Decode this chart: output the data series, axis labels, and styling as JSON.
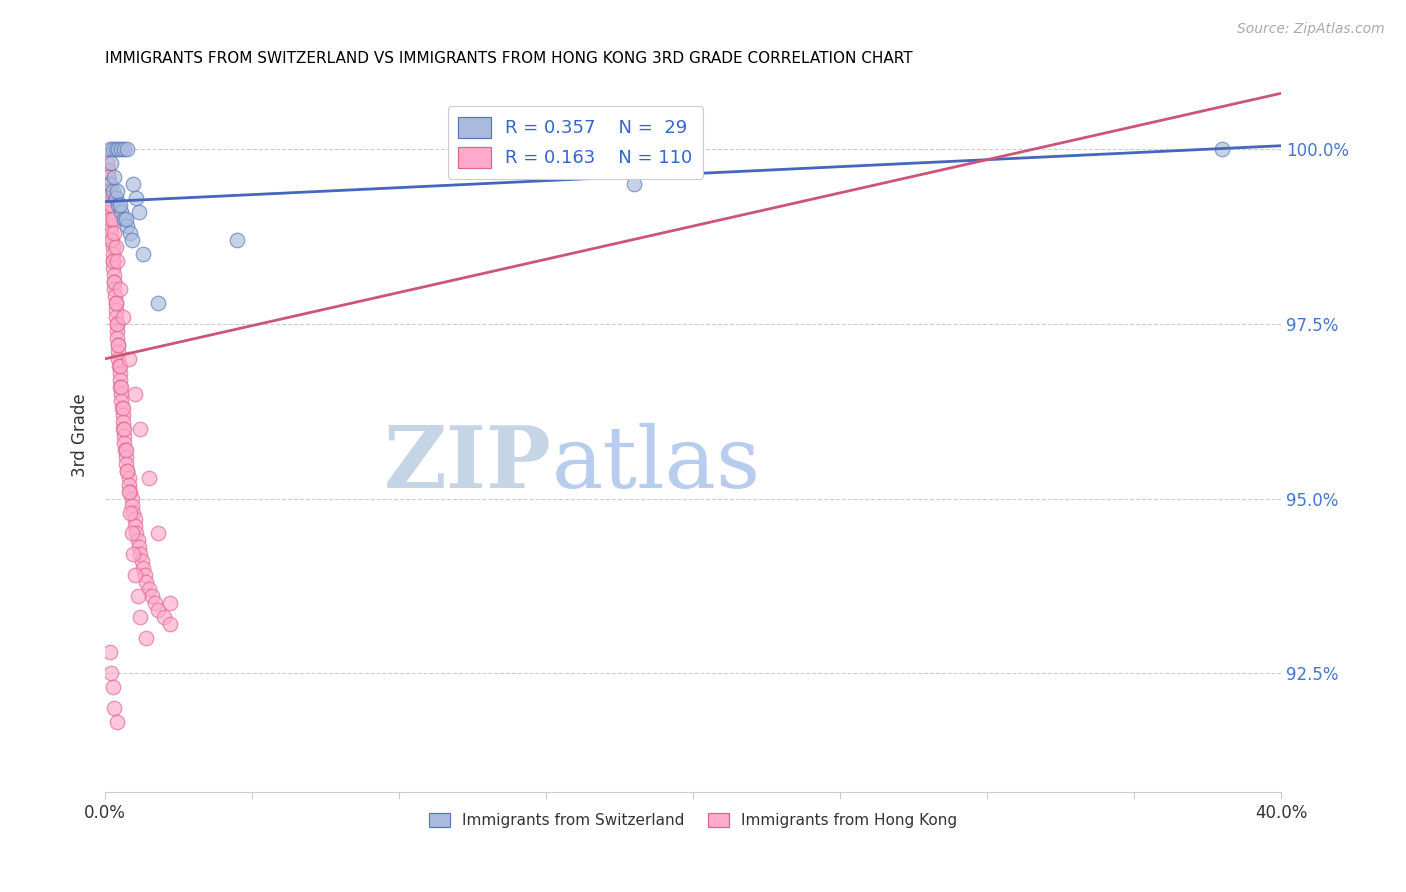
{
  "title": "IMMIGRANTS FROM SWITZERLAND VS IMMIGRANTS FROM HONG KONG 3RD GRADE CORRELATION CHART",
  "source": "Source: ZipAtlas.com",
  "ylabel": "3rd Grade",
  "ytick_values": [
    92.5,
    95.0,
    97.5,
    100.0
  ],
  "xlim": [
    0.0,
    40.0
  ],
  "ylim": [
    90.8,
    101.0
  ],
  "legend_blue": "R = 0.357    N =  29",
  "legend_pink": "R = 0.163    N = 110",
  "blue_fill": "#AABBDD",
  "blue_edge": "#5577BB",
  "blue_line": "#4466BB",
  "pink_fill": "#FFAACC",
  "pink_edge": "#DD6688",
  "pink_line": "#CC5577",
  "watermark_zip": "#C8D8E8",
  "watermark_atlas": "#B8CCE8",
  "switzerland_x": [
    0.15,
    0.25,
    0.35,
    0.45,
    0.55,
    0.65,
    0.75,
    0.15,
    0.25,
    0.35,
    0.45,
    0.55,
    0.65,
    0.75,
    0.85,
    0.95,
    1.05,
    1.15,
    0.2,
    0.3,
    0.4,
    0.5,
    0.7,
    0.9,
    1.3,
    1.8,
    4.5,
    18.0,
    38.0
  ],
  "switzerland_y": [
    100.0,
    100.0,
    100.0,
    100.0,
    100.0,
    100.0,
    100.0,
    99.5,
    99.4,
    99.3,
    99.2,
    99.1,
    99.0,
    98.9,
    98.8,
    99.5,
    99.3,
    99.1,
    99.8,
    99.6,
    99.4,
    99.2,
    99.0,
    98.7,
    98.5,
    97.8,
    98.7,
    99.5,
    100.0
  ],
  "hongkong_x": [
    0.05,
    0.08,
    0.1,
    0.1,
    0.12,
    0.15,
    0.15,
    0.15,
    0.18,
    0.2,
    0.2,
    0.2,
    0.22,
    0.25,
    0.25,
    0.25,
    0.28,
    0.3,
    0.3,
    0.3,
    0.32,
    0.35,
    0.35,
    0.38,
    0.4,
    0.4,
    0.4,
    0.42,
    0.45,
    0.45,
    0.48,
    0.5,
    0.5,
    0.52,
    0.55,
    0.55,
    0.58,
    0.6,
    0.6,
    0.62,
    0.65,
    0.65,
    0.68,
    0.7,
    0.7,
    0.75,
    0.8,
    0.8,
    0.85,
    0.9,
    0.9,
    0.95,
    1.0,
    1.0,
    1.05,
    1.1,
    1.15,
    1.2,
    1.25,
    1.3,
    1.35,
    1.4,
    1.5,
    1.6,
    1.7,
    1.8,
    2.0,
    2.2,
    0.1,
    0.15,
    0.2,
    0.25,
    0.3,
    0.35,
    0.4,
    0.45,
    0.5,
    0.55,
    0.6,
    0.65,
    0.7,
    0.75,
    0.8,
    0.85,
    0.9,
    0.95,
    1.0,
    1.1,
    1.2,
    1.4,
    0.1,
    0.15,
    0.2,
    0.25,
    0.3,
    0.35,
    0.4,
    0.5,
    0.6,
    0.8,
    1.0,
    1.2,
    1.5,
    1.8,
    2.2,
    0.15,
    0.2,
    0.25,
    0.3,
    0.4
  ],
  "hongkong_y": [
    99.8,
    99.7,
    99.6,
    99.5,
    99.5,
    99.4,
    99.3,
    99.2,
    99.1,
    99.0,
    98.9,
    98.8,
    98.7,
    98.6,
    98.5,
    98.4,
    98.3,
    98.2,
    98.1,
    98.0,
    97.9,
    97.8,
    97.7,
    97.6,
    97.5,
    97.4,
    97.3,
    97.2,
    97.1,
    97.0,
    96.9,
    96.8,
    96.7,
    96.6,
    96.5,
    96.4,
    96.3,
    96.2,
    96.1,
    96.0,
    95.9,
    95.8,
    95.7,
    95.6,
    95.5,
    95.4,
    95.3,
    95.2,
    95.1,
    95.0,
    94.9,
    94.8,
    94.7,
    94.6,
    94.5,
    94.4,
    94.3,
    94.2,
    94.1,
    94.0,
    93.9,
    93.8,
    93.7,
    93.6,
    93.5,
    93.4,
    93.3,
    93.2,
    99.3,
    99.0,
    98.7,
    98.4,
    98.1,
    97.8,
    97.5,
    97.2,
    96.9,
    96.6,
    96.3,
    96.0,
    95.7,
    95.4,
    95.1,
    94.8,
    94.5,
    94.2,
    93.9,
    93.6,
    93.3,
    93.0,
    99.6,
    99.4,
    99.2,
    99.0,
    98.8,
    98.6,
    98.4,
    98.0,
    97.6,
    97.0,
    96.5,
    96.0,
    95.3,
    94.5,
    93.5,
    92.8,
    92.5,
    92.3,
    92.0,
    91.8
  ],
  "blue_line_x0": 0.0,
  "blue_line_y0": 99.25,
  "blue_line_x1": 40.0,
  "blue_line_y1": 100.05,
  "pink_line_x0": 0.0,
  "pink_line_y0": 97.0,
  "pink_line_x1": 40.0,
  "pink_line_y1": 100.8
}
